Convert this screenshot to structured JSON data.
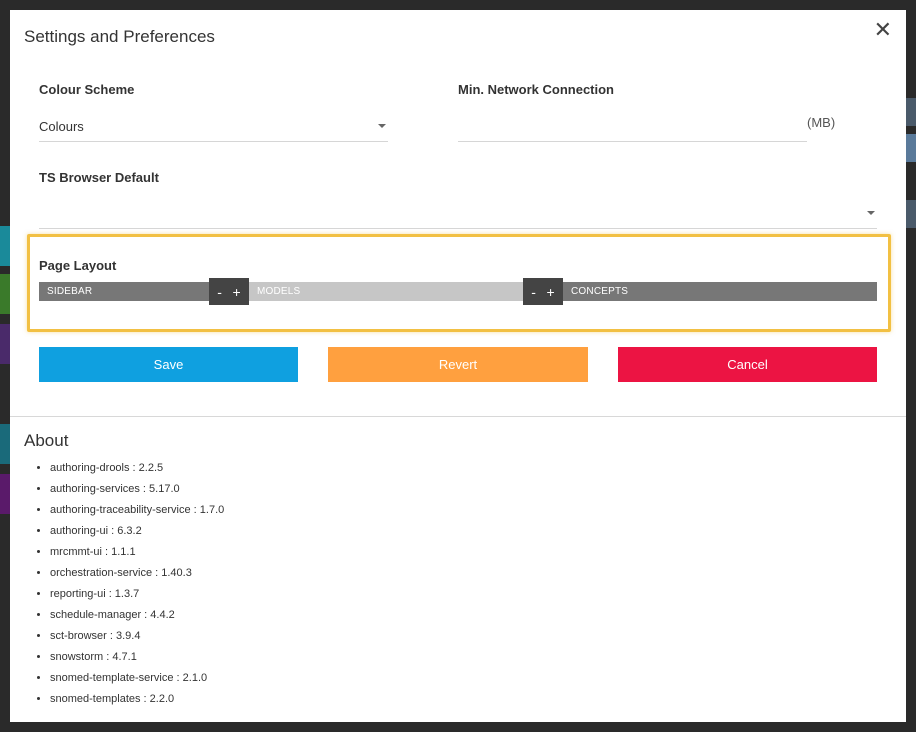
{
  "modal": {
    "title": "Settings and Preferences",
    "close_icon": "close-icon"
  },
  "colour_scheme": {
    "label": "Colour Scheme",
    "value": "Colours"
  },
  "network": {
    "label": "Min. Network Connection",
    "value": "",
    "unit": "(MB)"
  },
  "ts_browser": {
    "label": "TS Browser Default",
    "value": ""
  },
  "page_layout": {
    "label": "Page Layout",
    "segments": [
      "SIDEBAR",
      "MODELS",
      "CONCEPTS"
    ],
    "minus": "-",
    "plus": "+"
  },
  "actions": {
    "save": "Save",
    "revert": "Revert",
    "cancel": "Cancel"
  },
  "about": {
    "title": "About",
    "items": [
      "authoring-drools : 2.2.5",
      "authoring-services : 5.17.0",
      "authoring-traceability-service : 1.7.0",
      "authoring-ui : 6.3.2",
      "mrcmmt-ui : 1.1.1",
      "orchestration-service : 1.40.3",
      "reporting-ui : 1.3.7",
      "schedule-manager : 4.4.2",
      "sct-browser : 3.9.4",
      "snowstorm : 4.7.1",
      "snomed-template-service : 2.1.0",
      "snomed-templates : 2.2.0"
    ]
  },
  "colors": {
    "save": "#0fa0e0",
    "revert": "#ffa03f",
    "cancel": "#ec1443",
    "highlight": "#f2c043"
  }
}
